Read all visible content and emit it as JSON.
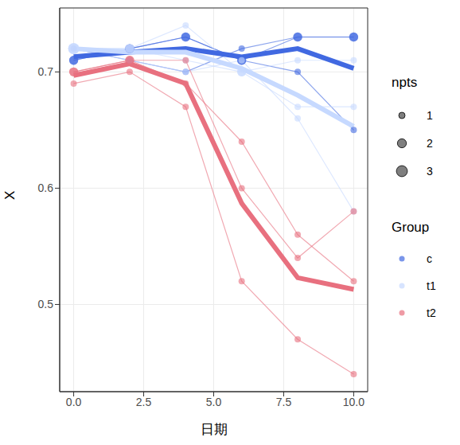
{
  "chart_data": {
    "type": "line",
    "x_label": "日期",
    "y_label": "X",
    "x": [
      0,
      2,
      4,
      6,
      8,
      10
    ],
    "xlim": [
      -0.5,
      10.5
    ],
    "xticks": [
      {
        "value": 0,
        "label": "0.0"
      },
      {
        "value": 2.5,
        "label": "2.5"
      },
      {
        "value": 5,
        "label": "5.0"
      },
      {
        "value": 7.5,
        "label": "7.5"
      },
      {
        "value": 10,
        "label": "10.0"
      }
    ],
    "ylim": [
      0.425,
      0.755
    ],
    "yticks": [
      0.5,
      0.6,
      0.7
    ],
    "grid": true,
    "legend": "right",
    "size_legend": {
      "title": "npts",
      "values": [
        1,
        2,
        3
      ]
    },
    "legend_title": "Group",
    "series": [
      {
        "name": "c",
        "color": "#4169e1",
        "subjects": [
          {
            "values": [
              0.71,
              0.72,
              0.73,
              0.71,
              0.73,
              0.73
            ],
            "npts": [
              2,
              2,
              2,
              2,
              2,
              2
            ]
          },
          {
            "values": [
              0.71,
              0.72,
              0.73,
              0.71,
              0.7,
              0.65
            ],
            "npts": [
              2,
              2,
              2,
              2,
              1,
              1
            ]
          },
          {
            "values": [
              0.72,
              0.71,
              0.7,
              0.72,
              0.73,
              0.73
            ],
            "npts": [
              1,
              1,
              1,
              1,
              2,
              2
            ]
          }
        ],
        "mean": [
          0.713,
          0.717,
          0.72,
          0.713,
          0.72,
          0.703
        ]
      },
      {
        "name": "t1",
        "color": "#c6d9ff",
        "subjects": [
          {
            "values": [
              0.72,
              0.72,
              0.74,
              0.7,
              0.71,
              0.71
            ],
            "npts": [
              3,
              2,
              1,
              2,
              1,
              1
            ]
          },
          {
            "values": [
              0.72,
              0.72,
              0.71,
              0.7,
              0.67,
              0.67
            ],
            "npts": [
              3,
              2,
              1,
              2,
              1,
              1
            ]
          },
          {
            "values": [
              0.72,
              0.71,
              0.7,
              0.71,
              0.66,
              0.58
            ],
            "npts": [
              3,
              1,
              1,
              1,
              1,
              1
            ]
          }
        ],
        "mean": [
          0.72,
          0.717,
          0.717,
          0.703,
          0.68,
          0.653
        ]
      },
      {
        "name": "t2",
        "color": "#e8707f",
        "subjects": [
          {
            "values": [
              0.7,
              0.71,
              0.71,
              0.6,
              0.54,
              0.58
            ],
            "npts": [
              2,
              2,
              1,
              1,
              1,
              1
            ]
          },
          {
            "values": [
              0.7,
              0.71,
              0.69,
              0.64,
              0.56,
              0.52
            ],
            "npts": [
              2,
              2,
              1,
              1,
              1,
              1
            ]
          },
          {
            "values": [
              0.69,
              0.7,
              0.67,
              0.52,
              0.47,
              0.44
            ],
            "npts": [
              1,
              1,
              1,
              1,
              1,
              1
            ]
          }
        ],
        "mean": [
          0.697,
          0.707,
          0.69,
          0.587,
          0.523,
          0.513
        ]
      }
    ]
  }
}
